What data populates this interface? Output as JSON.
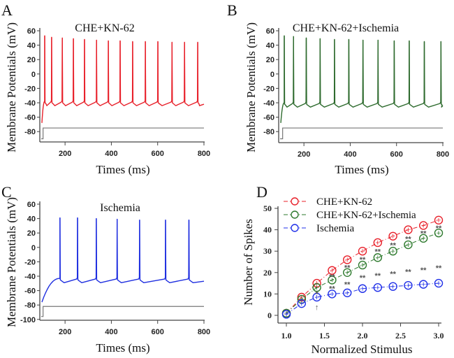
{
  "chart_data": [
    {
      "panel": "A",
      "type": "line",
      "title": "CHE+KN-62",
      "xlabel": "Times (ms)",
      "ylabel": "Membrane Potentials (mV)",
      "xlim": [
        100,
        800
      ],
      "ylim": [
        -90,
        60
      ],
      "xticks": [
        "200",
        "400",
        "600",
        "800"
      ],
      "xtick_values": [
        200,
        400,
        600,
        800
      ],
      "yticks": [
        "60",
        "40",
        "20",
        "0",
        "-20",
        "-40",
        "-60",
        "-80"
      ],
      "ytick_values": [
        60,
        40,
        20,
        0,
        -20,
        -40,
        -60,
        -80
      ],
      "color": "#e8202a",
      "resting_start_mV": -68,
      "trough_mV": -44,
      "spike_times_ms": [
        112,
        142,
        188,
        236,
        284,
        336,
        387,
        438,
        492,
        547,
        601,
        662,
        716,
        773
      ],
      "spike_peaks_mV": [
        53,
        51,
        50,
        49,
        48,
        47,
        46,
        46,
        45,
        45,
        45,
        44,
        44,
        44
      ],
      "spike_count": 14,
      "stimulus": {
        "baseline_mV": -90,
        "step_mV": -75,
        "onset_ms": 105,
        "color": "#777777"
      }
    },
    {
      "panel": "B",
      "type": "line",
      "title": "CHE+KN-62+Ischemia",
      "xlabel": "Times (ms)",
      "ylabel": "Membrane Potentials (mV)",
      "xlim": [
        100,
        800
      ],
      "ylim": [
        -90,
        60
      ],
      "xticks": [
        "200",
        "400",
        "600",
        "800"
      ],
      "xtick_values": [
        200,
        400,
        600,
        800
      ],
      "yticks": [
        "60",
        "40",
        "20",
        "0",
        "-20",
        "-40",
        "-60",
        "-80"
      ],
      "ytick_values": [
        60,
        40,
        20,
        0,
        -20,
        -40,
        -60,
        -80
      ],
      "color": "#2e6b2e",
      "resting_start_mV": -68,
      "trough_mV": -46,
      "spike_times_ms": [
        115,
        155,
        210,
        270,
        332,
        394,
        455,
        520,
        590,
        655,
        720,
        792
      ],
      "spike_peaks_mV": [
        53,
        52,
        50,
        49,
        48,
        48,
        47,
        47,
        46,
        46,
        45,
        45
      ],
      "spike_count": 12,
      "stimulus": {
        "baseline_mV": -90,
        "step_mV": -75,
        "onset_ms": 108,
        "color": "#777777"
      }
    },
    {
      "panel": "C",
      "type": "line",
      "title": "Ischemia",
      "xlabel": "Times (ms)",
      "ylabel": "Membrane Potentials (mV)",
      "xlim": [
        100,
        800
      ],
      "ylim": [
        -100,
        60
      ],
      "xticks": [
        "200",
        "400",
        "600",
        "800"
      ],
      "xtick_values": [
        200,
        400,
        600,
        800
      ],
      "yticks": [
        "60",
        "40",
        "20",
        "0",
        "-20",
        "-40",
        "-60",
        "-80",
        "-100"
      ],
      "ytick_values": [
        60,
        40,
        20,
        0,
        -20,
        -40,
        -60,
        -80,
        -100
      ],
      "color": "#1f2fe0",
      "resting_start_mV": -76,
      "trough_mV": -49,
      "spike_times_ms": [
        178,
        254,
        335,
        425,
        522,
        634,
        735
      ],
      "spike_peaks_mV": [
        41,
        41,
        40,
        39,
        38,
        38,
        38
      ],
      "spike_count": 7,
      "stimulus": {
        "baseline_mV": -96,
        "step_mV": -82,
        "onset_ms": 105,
        "color": "#777777"
      }
    },
    {
      "panel": "D",
      "type": "line",
      "title": "",
      "xlabel": "Normalized Stimulus",
      "ylabel": "Number of Spikes",
      "xlim": [
        1.0,
        3.0
      ],
      "ylim": [
        0,
        50
      ],
      "xticks": [
        "1.0",
        "1.5",
        "2.0",
        "2.5",
        "3.0"
      ],
      "xtick_values": [
        1.0,
        1.5,
        2.0,
        2.5,
        3.0
      ],
      "yticks": [
        "50",
        "40",
        "30",
        "20",
        "10",
        "0"
      ],
      "ytick_values": [
        50,
        40,
        30,
        20,
        10,
        0
      ],
      "x": [
        1.0,
        1.2,
        1.4,
        1.6,
        1.8,
        2.0,
        2.2,
        2.4,
        2.6,
        2.8,
        3.0
      ],
      "legend_position": "top-left",
      "series": [
        {
          "name": "CHE+KN-62",
          "color": "#e8202a",
          "values": [
            1,
            8.5,
            15,
            21,
            26,
            30,
            34,
            37,
            40,
            42,
            44.5
          ]
        },
        {
          "name": "CHE+KN-62+Ischemia",
          "color": "#2e7a2e",
          "values": [
            1,
            7.5,
            13,
            16.5,
            20,
            23.5,
            27,
            30,
            33,
            36,
            38.5
          ]
        },
        {
          "name": "Ischemia",
          "color": "#2030e8",
          "values": [
            0.5,
            5.5,
            8.5,
            10,
            10.5,
            12.5,
            13,
            13.5,
            14,
            14.5,
            15
          ]
        }
      ],
      "annotations": {
        "green_vs_red": [
          {
            "x": 1.6,
            "label": "**"
          },
          {
            "x": 1.8,
            "label": "**"
          },
          {
            "x": 2.0,
            "label": "**"
          },
          {
            "x": 2.2,
            "label": "**"
          },
          {
            "x": 2.4,
            "label": "**"
          },
          {
            "x": 2.6,
            "label": "**"
          },
          {
            "x": 2.8,
            "label": "**"
          },
          {
            "x": 3.0,
            "label": "**"
          }
        ],
        "blue_vs_green": [
          {
            "x": 1.4,
            "label": "*"
          },
          {
            "x": 1.6,
            "label": "**"
          },
          {
            "x": 1.8,
            "label": "**"
          },
          {
            "x": 2.0,
            "label": "**"
          },
          {
            "x": 2.2,
            "label": "**"
          },
          {
            "x": 2.4,
            "label": "**"
          },
          {
            "x": 2.6,
            "label": "**"
          },
          {
            "x": 2.8,
            "label": "**"
          },
          {
            "x": 3.0,
            "label": "**"
          }
        ],
        "arrow": {
          "x": 1.4,
          "label": "↑"
        }
      }
    }
  ],
  "panel_letters": [
    "A",
    "B",
    "C",
    "D"
  ]
}
